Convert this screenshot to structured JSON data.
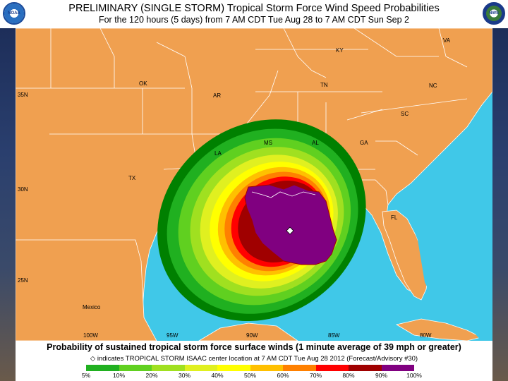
{
  "header": {
    "title_line1": "PRELIMINARY (SINGLE STORM) Tropical Storm Force Wind Speed Probabilities",
    "title_line2": "For the 120 hours (5 days) from 7 AM CDT Tue Aug 28 to 7 AM CDT Sun Sep 2",
    "logo_left": "noaa-logo",
    "logo_right": "nws-logo",
    "logo_left_text": "NOAA",
    "logo_right_text": "NWS"
  },
  "map": {
    "state_labels": [
      "VA",
      "KY",
      "OK",
      "AR",
      "TN",
      "NC",
      "SC",
      "MS",
      "AL",
      "GA",
      "LA",
      "TX",
      "FL",
      "Mexico"
    ],
    "lat_labels": [
      "35N",
      "30N",
      "25N"
    ],
    "lon_labels": [
      "100W",
      "95W",
      "90W",
      "85W",
      "80W"
    ],
    "colors": {
      "land": "#f0a050",
      "water": "#40c8e8",
      "border": "#ffffff"
    },
    "storm_center_icon": "diamond-icon"
  },
  "footer": {
    "caption": "Probability of sustained tropical storm force surface winds (1 minute average of 39 mph or greater)",
    "note_symbol": "◇",
    "note": "indicates TROPICAL STORM ISAAC center location at 7 AM CDT Tue Aug 28 2012 (Forecast/Advisory #30)"
  },
  "legend": {
    "labels": [
      "5%",
      "10%",
      "20%",
      "30%",
      "40%",
      "50%",
      "60%",
      "70%",
      "80%",
      "90%",
      "100%"
    ],
    "colors": [
      "#008000",
      "#20b020",
      "#60d020",
      "#a0e020",
      "#e0f020",
      "#ffff00",
      "#ffc000",
      "#ff8000",
      "#ff0000",
      "#a00000",
      "#800080"
    ]
  }
}
